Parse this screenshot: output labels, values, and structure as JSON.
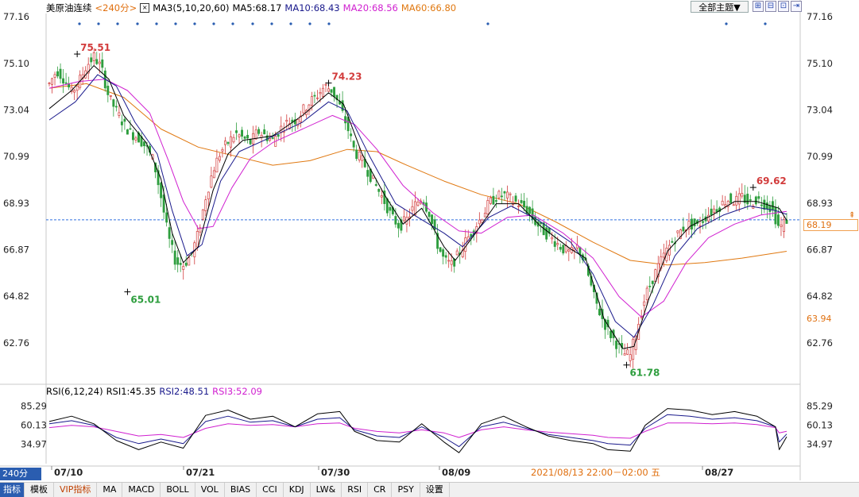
{
  "header": {
    "symbol": "美原油连续",
    "period": "<240分>",
    "ma_title": "MA3(5,10,20,60)",
    "ma5": "MA5:68.17",
    "ma10": "MA10:68.43",
    "ma20": "MA20:68.56",
    "ma60": "MA60:66.80",
    "theme_button": "全部主题▼",
    "tool_icons": [
      "zoom-in-icon",
      "zoom-out-icon",
      "grid-icon",
      "left-arrow-icon",
      "right-arrow-icon"
    ]
  },
  "rsi_header": {
    "title": "RSI(6,12,24)",
    "rsi1": "RSI1:45.35",
    "rsi2": "RSI2:48.51",
    "rsi3": "RSI3:52.09"
  },
  "colors": {
    "up": "#d23c3c",
    "down": "#2e9e3e",
    "ma5": "#000000",
    "ma10": "#1a1a8c",
    "ma20": "#d020d0",
    "ma60": "#e07810",
    "rsi1": "#000000",
    "rsi2": "#1a1a8c",
    "rsi3": "#d020d0",
    "current_line": "#3070e0"
  },
  "chart_data": {
    "type": "candlestick",
    "price_axis": {
      "ticks": [
        "77.16",
        "75.10",
        "73.04",
        "70.99",
        "68.93",
        "66.87",
        "64.82",
        "62.76"
      ],
      "ylim": [
        61.0,
        77.16
      ]
    },
    "current_price": "68.19",
    "lower_label": "63.94",
    "annotations": [
      {
        "text": "75.51",
        "value": 75.51,
        "kind": "high"
      },
      {
        "text": "65.01",
        "value": 65.01,
        "kind": "low"
      },
      {
        "text": "74.23",
        "value": 74.23,
        "kind": "high"
      },
      {
        "text": "61.78",
        "value": 61.78,
        "kind": "low"
      },
      {
        "text": "69.62",
        "value": 69.62,
        "kind": "high"
      }
    ],
    "x_labels": [
      "07/10",
      "07/21",
      "07/30",
      "08/09",
      "08/27"
    ],
    "cursor_label": "2021/08/13 22:00－02:00 五",
    "close_path": [
      [
        0,
        74.2
      ],
      [
        4,
        74.8
      ],
      [
        8,
        74.4
      ],
      [
        12,
        73.8
      ],
      [
        16,
        74.3
      ],
      [
        20,
        75.0
      ],
      [
        24,
        75.4
      ],
      [
        28,
        74.9
      ],
      [
        32,
        73.6
      ],
      [
        36,
        73.0
      ],
      [
        40,
        72.4
      ],
      [
        44,
        72.0
      ],
      [
        48,
        71.8
      ],
      [
        52,
        71.4
      ],
      [
        56,
        70.8
      ],
      [
        60,
        69.2
      ],
      [
        64,
        67.4
      ],
      [
        68,
        66.3
      ],
      [
        72,
        66.2
      ],
      [
        76,
        66.6
      ],
      [
        80,
        67.6
      ],
      [
        84,
        69.2
      ],
      [
        88,
        70.4
      ],
      [
        92,
        71.2
      ],
      [
        96,
        71.6
      ],
      [
        100,
        72.0
      ],
      [
        104,
        71.8
      ],
      [
        108,
        71.6
      ],
      [
        112,
        72.1
      ],
      [
        116,
        71.9
      ],
      [
        120,
        71.7
      ],
      [
        124,
        72.2
      ],
      [
        128,
        72.5
      ],
      [
        132,
        72.6
      ],
      [
        136,
        73.0
      ],
      [
        140,
        73.4
      ],
      [
        144,
        73.7
      ],
      [
        148,
        74.1
      ],
      [
        152,
        73.9
      ],
      [
        156,
        73.2
      ],
      [
        160,
        72.3
      ],
      [
        164,
        71.2
      ],
      [
        168,
        70.8
      ],
      [
        172,
        70.2
      ],
      [
        176,
        69.6
      ],
      [
        180,
        69.0
      ],
      [
        184,
        68.3
      ],
      [
        188,
        67.9
      ],
      [
        192,
        68.2
      ],
      [
        196,
        68.8
      ],
      [
        200,
        69.2
      ],
      [
        204,
        68.5
      ],
      [
        208,
        67.2
      ],
      [
        212,
        66.4
      ],
      [
        216,
        66.2
      ],
      [
        220,
        66.7
      ],
      [
        224,
        67.3
      ],
      [
        228,
        67.8
      ],
      [
        232,
        68.3
      ],
      [
        236,
        68.9
      ],
      [
        240,
        69.2
      ],
      [
        244,
        69.3
      ],
      [
        248,
        69.1
      ],
      [
        252,
        68.9
      ],
      [
        256,
        68.7
      ],
      [
        260,
        68.2
      ],
      [
        264,
        67.8
      ],
      [
        268,
        67.5
      ],
      [
        272,
        67.2
      ],
      [
        276,
        66.9
      ],
      [
        280,
        66.7
      ],
      [
        284,
        67.0
      ],
      [
        288,
        66.2
      ],
      [
        292,
        64.9
      ],
      [
        296,
        64.0
      ],
      [
        300,
        63.3
      ],
      [
        304,
        62.8
      ],
      [
        308,
        62.3
      ],
      [
        312,
        62.2
      ],
      [
        316,
        63.5
      ],
      [
        320,
        64.8
      ],
      [
        324,
        65.6
      ],
      [
        328,
        66.3
      ],
      [
        332,
        66.9
      ],
      [
        336,
        67.4
      ],
      [
        340,
        67.8
      ],
      [
        344,
        68.0
      ],
      [
        348,
        67.9
      ],
      [
        352,
        68.3
      ],
      [
        356,
        68.6
      ],
      [
        360,
        68.8
      ],
      [
        364,
        69.1
      ],
      [
        368,
        69.0
      ],
      [
        372,
        69.2
      ],
      [
        376,
        68.9
      ],
      [
        380,
        69.1
      ],
      [
        384,
        68.9
      ],
      [
        388,
        68.7
      ],
      [
        392,
        67.8
      ],
      [
        396,
        68.19
      ]
    ],
    "ma_paths": {
      "MA5": [
        [
          0,
          73.1
        ],
        [
          12,
          73.9
        ],
        [
          24,
          75.0
        ],
        [
          32,
          74.4
        ],
        [
          40,
          72.8
        ],
        [
          52,
          71.6
        ],
        [
          60,
          70.0
        ],
        [
          66,
          67.6
        ],
        [
          72,
          66.3
        ],
        [
          80,
          67.0
        ],
        [
          88,
          69.5
        ],
        [
          96,
          71.1
        ],
        [
          104,
          71.7
        ],
        [
          120,
          71.9
        ],
        [
          136,
          72.8
        ],
        [
          150,
          73.8
        ],
        [
          158,
          73.3
        ],
        [
          168,
          71.1
        ],
        [
          180,
          69.3
        ],
        [
          190,
          68.0
        ],
        [
          200,
          68.7
        ],
        [
          212,
          67.0
        ],
        [
          218,
          66.4
        ],
        [
          228,
          67.5
        ],
        [
          240,
          68.9
        ],
        [
          252,
          68.9
        ],
        [
          264,
          67.9
        ],
        [
          280,
          66.9
        ],
        [
          288,
          66.5
        ],
        [
          298,
          63.8
        ],
        [
          308,
          62.5
        ],
        [
          314,
          62.6
        ],
        [
          322,
          64.7
        ],
        [
          332,
          66.8
        ],
        [
          344,
          67.9
        ],
        [
          356,
          68.4
        ],
        [
          368,
          69.0
        ],
        [
          380,
          69.0
        ],
        [
          392,
          68.7
        ],
        [
          396,
          68.17
        ]
      ],
      "MA10": [
        [
          0,
          72.6
        ],
        [
          14,
          73.4
        ],
        [
          26,
          74.6
        ],
        [
          36,
          74.1
        ],
        [
          46,
          72.5
        ],
        [
          58,
          71.1
        ],
        [
          66,
          68.6
        ],
        [
          74,
          66.6
        ],
        [
          82,
          67.1
        ],
        [
          92,
          69.9
        ],
        [
          102,
          71.2
        ],
        [
          118,
          71.8
        ],
        [
          136,
          72.5
        ],
        [
          150,
          73.4
        ],
        [
          160,
          73.0
        ],
        [
          172,
          71.0
        ],
        [
          186,
          68.9
        ],
        [
          198,
          68.3
        ],
        [
          212,
          67.6
        ],
        [
          222,
          67.0
        ],
        [
          236,
          68.3
        ],
        [
          248,
          68.8
        ],
        [
          262,
          68.2
        ],
        [
          280,
          67.2
        ],
        [
          292,
          65.8
        ],
        [
          304,
          63.7
        ],
        [
          314,
          63.0
        ],
        [
          324,
          64.4
        ],
        [
          336,
          66.6
        ],
        [
          348,
          67.8
        ],
        [
          362,
          68.4
        ],
        [
          376,
          68.8
        ],
        [
          390,
          68.6
        ],
        [
          396,
          68.43
        ]
      ],
      "MA20": [
        [
          0,
          74.0
        ],
        [
          16,
          74.3
        ],
        [
          30,
          74.4
        ],
        [
          42,
          73.9
        ],
        [
          54,
          72.9
        ],
        [
          64,
          70.8
        ],
        [
          72,
          69.0
        ],
        [
          80,
          67.8
        ],
        [
          88,
          67.9
        ],
        [
          98,
          69.6
        ],
        [
          108,
          70.9
        ],
        [
          120,
          71.6
        ],
        [
          136,
          72.2
        ],
        [
          152,
          72.8
        ],
        [
          164,
          72.4
        ],
        [
          176,
          71.3
        ],
        [
          190,
          69.7
        ],
        [
          206,
          68.5
        ],
        [
          220,
          67.7
        ],
        [
          232,
          67.6
        ],
        [
          246,
          68.3
        ],
        [
          260,
          68.4
        ],
        [
          276,
          67.6
        ],
        [
          292,
          66.5
        ],
        [
          306,
          64.8
        ],
        [
          318,
          63.9
        ],
        [
          330,
          64.6
        ],
        [
          342,
          66.3
        ],
        [
          354,
          67.4
        ],
        [
          368,
          68.0
        ],
        [
          382,
          68.4
        ],
        [
          396,
          68.56
        ]
      ],
      "MA60": [
        [
          0,
          74.0
        ],
        [
          20,
          74.2
        ],
        [
          40,
          73.6
        ],
        [
          60,
          72.2
        ],
        [
          80,
          71.4
        ],
        [
          100,
          71.0
        ],
        [
          120,
          70.6
        ],
        [
          140,
          70.8
        ],
        [
          160,
          71.3
        ],
        [
          176,
          71.2
        ],
        [
          192,
          70.6
        ],
        [
          212,
          69.9
        ],
        [
          232,
          69.3
        ],
        [
          252,
          68.9
        ],
        [
          272,
          68.1
        ],
        [
          292,
          67.2
        ],
        [
          312,
          66.4
        ],
        [
          332,
          66.2
        ],
        [
          352,
          66.3
        ],
        [
          372,
          66.5
        ],
        [
          396,
          66.8
        ]
      ]
    },
    "rsi_axis": {
      "ticks": [
        "85.29",
        "60.13",
        "34.97"
      ],
      "ylim": [
        18,
        93
      ]
    },
    "rsi_paths": {
      "RSI1": [
        [
          0,
          65
        ],
        [
          12,
          72
        ],
        [
          24,
          62
        ],
        [
          36,
          40
        ],
        [
          48,
          28
        ],
        [
          60,
          38
        ],
        [
          72,
          30
        ],
        [
          84,
          73
        ],
        [
          96,
          80
        ],
        [
          108,
          68
        ],
        [
          120,
          72
        ],
        [
          132,
          58
        ],
        [
          144,
          75
        ],
        [
          156,
          78
        ],
        [
          164,
          52
        ],
        [
          176,
          40
        ],
        [
          188,
          38
        ],
        [
          200,
          62
        ],
        [
          212,
          38
        ],
        [
          220,
          24
        ],
        [
          232,
          62
        ],
        [
          244,
          72
        ],
        [
          256,
          58
        ],
        [
          268,
          46
        ],
        [
          280,
          40
        ],
        [
          292,
          36
        ],
        [
          300,
          28
        ],
        [
          312,
          26
        ],
        [
          320,
          60
        ],
        [
          332,
          82
        ],
        [
          344,
          80
        ],
        [
          356,
          74
        ],
        [
          368,
          78
        ],
        [
          380,
          72
        ],
        [
          390,
          58
        ],
        [
          392,
          28
        ],
        [
          396,
          45
        ]
      ],
      "RSI2": [
        [
          0,
          62
        ],
        [
          12,
          66
        ],
        [
          24,
          60
        ],
        [
          36,
          44
        ],
        [
          48,
          36
        ],
        [
          60,
          42
        ],
        [
          72,
          36
        ],
        [
          84,
          65
        ],
        [
          96,
          72
        ],
        [
          108,
          64
        ],
        [
          120,
          66
        ],
        [
          132,
          58
        ],
        [
          144,
          68
        ],
        [
          156,
          70
        ],
        [
          164,
          54
        ],
        [
          176,
          46
        ],
        [
          188,
          44
        ],
        [
          200,
          58
        ],
        [
          212,
          44
        ],
        [
          220,
          32
        ],
        [
          232,
          58
        ],
        [
          244,
          64
        ],
        [
          256,
          56
        ],
        [
          268,
          48
        ],
        [
          280,
          44
        ],
        [
          292,
          40
        ],
        [
          300,
          36
        ],
        [
          312,
          34
        ],
        [
          320,
          56
        ],
        [
          332,
          74
        ],
        [
          344,
          72
        ],
        [
          356,
          68
        ],
        [
          368,
          70
        ],
        [
          380,
          66
        ],
        [
          390,
          58
        ],
        [
          392,
          38
        ],
        [
          396,
          48.5
        ]
      ],
      "RSI3": [
        [
          0,
          57
        ],
        [
          12,
          60
        ],
        [
          24,
          58
        ],
        [
          36,
          52
        ],
        [
          48,
          46
        ],
        [
          60,
          48
        ],
        [
          72,
          44
        ],
        [
          84,
          56
        ],
        [
          96,
          62
        ],
        [
          108,
          60
        ],
        [
          120,
          61
        ],
        [
          132,
          58
        ],
        [
          144,
          62
        ],
        [
          156,
          63
        ],
        [
          164,
          56
        ],
        [
          176,
          52
        ],
        [
          188,
          50
        ],
        [
          200,
          54
        ],
        [
          212,
          50
        ],
        [
          220,
          44
        ],
        [
          232,
          54
        ],
        [
          244,
          58
        ],
        [
          256,
          54
        ],
        [
          268,
          51
        ],
        [
          280,
          49
        ],
        [
          292,
          47
        ],
        [
          300,
          44
        ],
        [
          312,
          43
        ],
        [
          320,
          52
        ],
        [
          332,
          63
        ],
        [
          344,
          63
        ],
        [
          356,
          62
        ],
        [
          368,
          63
        ],
        [
          380,
          61
        ],
        [
          390,
          57
        ],
        [
          392,
          50
        ],
        [
          396,
          52.1
        ]
      ]
    }
  },
  "toolbar": {
    "period_button": "240分",
    "tabs": [
      "指标",
      "模板",
      "VIP指标",
      "MA",
      "MACD",
      "BOLL",
      "VOL",
      "BIAS",
      "CCI",
      "KDJ",
      "LW&",
      "RSI",
      "CR",
      "PSY",
      "设置"
    ]
  }
}
